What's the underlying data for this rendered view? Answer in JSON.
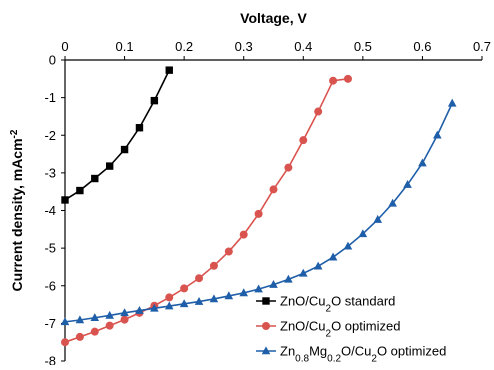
{
  "chart_data": {
    "type": "line",
    "title": "",
    "xlabel": "Voltage, V",
    "ylabel_parts": [
      {
        "t": "Current density, mAcm",
        "sup": false
      },
      {
        "t": "-2",
        "sup": true
      }
    ],
    "xlim": [
      0,
      0.7
    ],
    "ylim": [
      -8,
      0
    ],
    "x_ticks": [
      "0",
      "0.1",
      "0.2",
      "0.3",
      "0.4",
      "0.5",
      "0.6",
      "0.7"
    ],
    "y_ticks": [
      "0",
      "-1",
      "-2",
      "-3",
      "-4",
      "-5",
      "-6",
      "-7",
      "-8"
    ],
    "x_axis_position": "top",
    "grid": false,
    "legend_position": "bottom-right",
    "series": [
      {
        "name_parts": [
          {
            "t": "ZnO/Cu",
            "s": ""
          },
          {
            "t": "2",
            "s": "sub"
          },
          {
            "t": "O standard",
            "s": ""
          }
        ],
        "color": "#000000",
        "marker": "square",
        "x": [
          0.0,
          0.025,
          0.05,
          0.075,
          0.1,
          0.125,
          0.15,
          0.175
        ],
        "y": [
          -3.72,
          -3.47,
          -3.15,
          -2.82,
          -2.38,
          -1.8,
          -1.08,
          -0.27
        ]
      },
      {
        "name_parts": [
          {
            "t": "ZnO/Cu",
            "s": ""
          },
          {
            "t": "2",
            "s": "sub"
          },
          {
            "t": "O optimized",
            "s": ""
          }
        ],
        "color": "#d9534f",
        "marker": "circle",
        "x": [
          0.0,
          0.025,
          0.05,
          0.075,
          0.1,
          0.125,
          0.15,
          0.175,
          0.2,
          0.225,
          0.25,
          0.275,
          0.3,
          0.325,
          0.35,
          0.375,
          0.4,
          0.425,
          0.45,
          0.475
        ],
        "y": [
          -7.5,
          -7.36,
          -7.22,
          -7.06,
          -6.9,
          -6.72,
          -6.53,
          -6.31,
          -6.07,
          -5.8,
          -5.47,
          -5.09,
          -4.64,
          -4.09,
          -3.44,
          -2.86,
          -2.13,
          -1.37,
          -0.55,
          -0.5
        ]
      },
      {
        "name_parts": [
          {
            "t": "Zn",
            "s": ""
          },
          {
            "t": "0.8",
            "s": "sub"
          },
          {
            "t": "Mg",
            "s": ""
          },
          {
            "t": "0.2",
            "s": "sub"
          },
          {
            "t": "O/Cu",
            "s": ""
          },
          {
            "t": "2",
            "s": "sub"
          },
          {
            "t": "O optimized",
            "s": ""
          }
        ],
        "color": "#1f5ea8",
        "marker": "triangle",
        "x": [
          0.0,
          0.025,
          0.05,
          0.075,
          0.1,
          0.125,
          0.15,
          0.175,
          0.2,
          0.225,
          0.25,
          0.275,
          0.3,
          0.325,
          0.35,
          0.375,
          0.4,
          0.425,
          0.45,
          0.475,
          0.5,
          0.525,
          0.55,
          0.575,
          0.6,
          0.625,
          0.65
        ],
        "y": [
          -6.96,
          -6.91,
          -6.85,
          -6.79,
          -6.72,
          -6.66,
          -6.6,
          -6.54,
          -6.48,
          -6.42,
          -6.35,
          -6.27,
          -6.19,
          -6.09,
          -5.97,
          -5.83,
          -5.67,
          -5.48,
          -5.24,
          -4.95,
          -4.62,
          -4.24,
          -3.81,
          -3.31,
          -2.74,
          -2.0,
          -1.15
        ]
      }
    ]
  }
}
